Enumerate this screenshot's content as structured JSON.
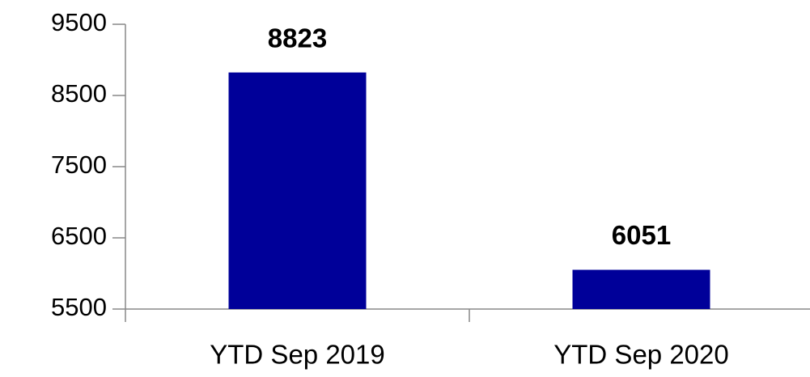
{
  "chart_data": {
    "type": "bar",
    "categories": [
      "YTD Sep 2019",
      "YTD Sep 2020"
    ],
    "values": [
      8823,
      6051
    ],
    "color": "#000099",
    "ylim": [
      5500,
      9500
    ],
    "yticks": [
      5500,
      6500,
      7500,
      8500,
      9500
    ],
    "grid": false
  }
}
